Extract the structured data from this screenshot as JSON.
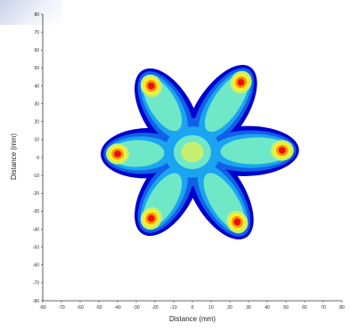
{
  "chart_data": {
    "type": "heatmap",
    "title": "",
    "xlabel": "Distance (mm)",
    "ylabel": "Distance (mm)",
    "xlim": [
      -80,
      80
    ],
    "ylim": [
      -80,
      80
    ],
    "xticks": [
      -80,
      -70,
      -60,
      -50,
      -40,
      -30,
      -20,
      -10,
      0,
      10,
      20,
      30,
      40,
      50,
      60,
      70,
      80
    ],
    "yticks": [
      -80,
      -70,
      -60,
      -50,
      -40,
      -30,
      -20,
      -10,
      0,
      10,
      20,
      30,
      40,
      50,
      60,
      70,
      80
    ],
    "colormap": [
      "#0000cc",
      "#1060e8",
      "#1aa4f2",
      "#6fe8c8",
      "#c8f070",
      "#fff020",
      "#ff9010",
      "#e81010"
    ],
    "lobes": [
      {
        "angle_deg": 112,
        "peak_x": -22,
        "peak_y": 40
      },
      {
        "angle_deg": 58,
        "peak_x": 26,
        "peak_y": 42
      },
      {
        "angle_deg": 0,
        "peak_x": 48,
        "peak_y": 4
      },
      {
        "angle_deg": -57,
        "peak_x": 24,
        "peak_y": -36
      },
      {
        "angle_deg": -123,
        "peak_x": -22,
        "peak_y": -34
      },
      {
        "angle_deg": 178,
        "peak_x": -40,
        "peak_y": 2
      }
    ],
    "grid": false,
    "legend": "none"
  }
}
